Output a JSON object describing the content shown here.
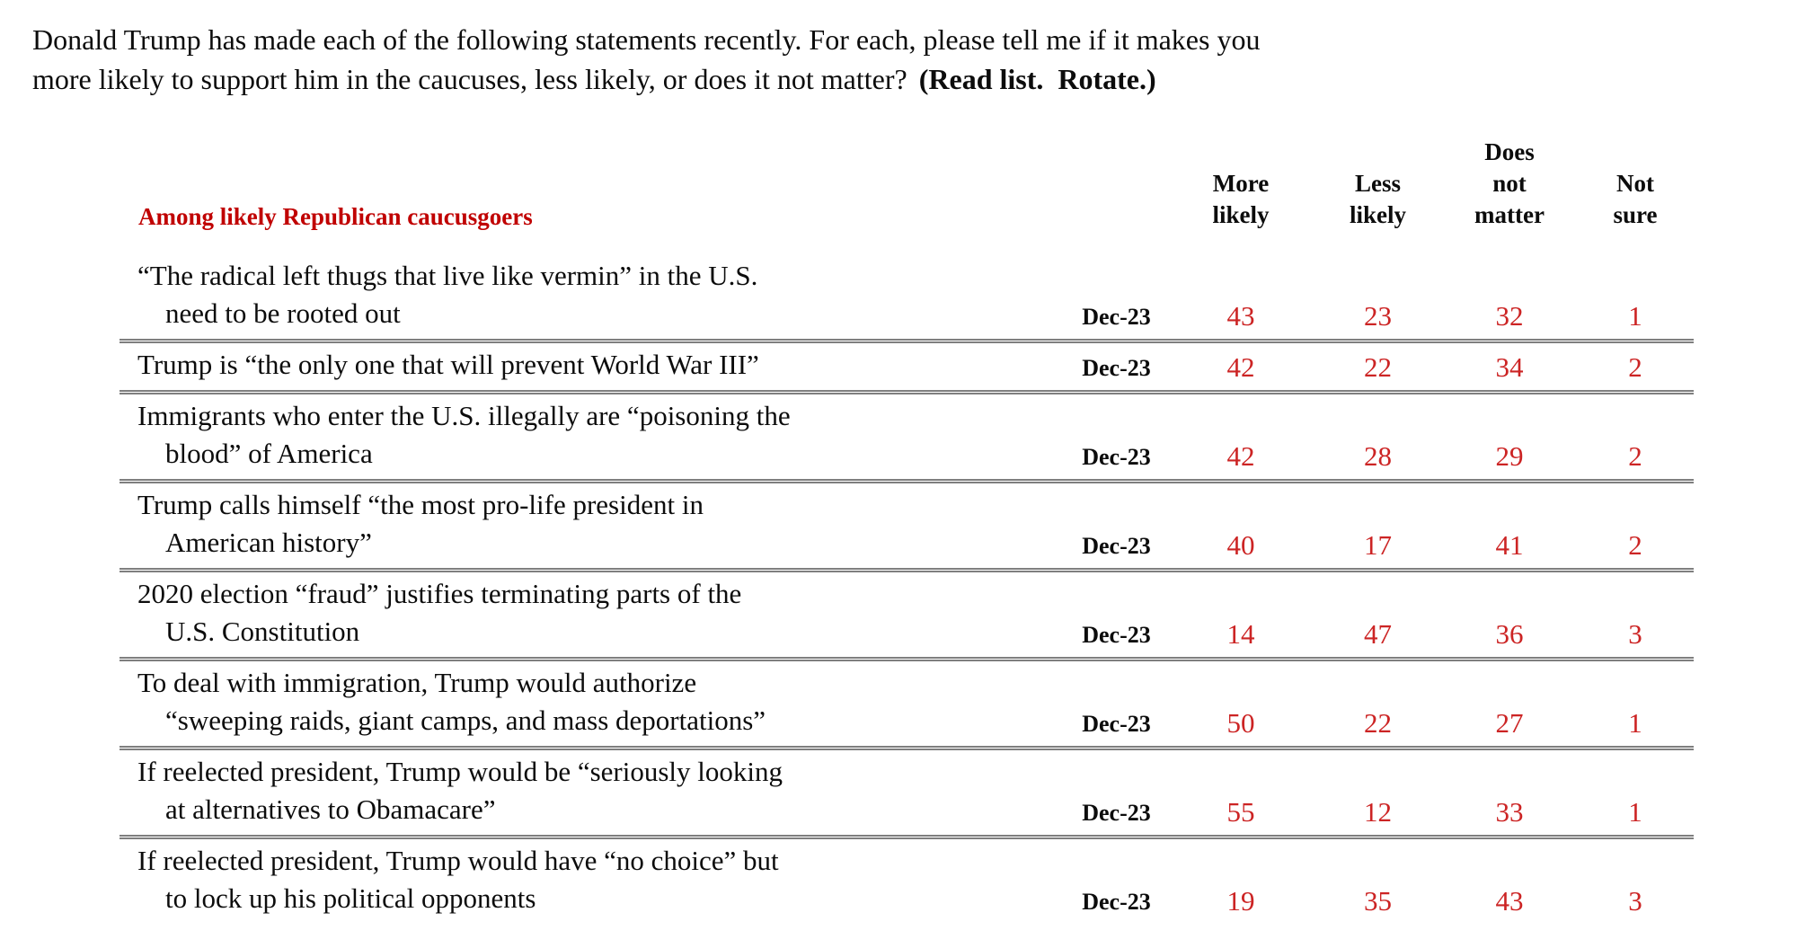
{
  "question": {
    "line1": "Donald Trump has made each of the following statements recently. For each, please tell me if it makes you",
    "line2": "more likely to support him in the caucuses, less likely, or does it not matter?",
    "directive": "(Read list.  Rotate.)"
  },
  "table": {
    "subtitle": "Among likely Republican caucusgoers",
    "columns": [
      "More\nlikely",
      "Less\nlikely",
      "Does\nnot\nmatter",
      "Not\nsure"
    ],
    "rows": [
      {
        "lines": [
          "“The radical left thugs that live like vermin” in the U.S.",
          "need to be rooted out"
        ],
        "date": "Dec-23",
        "values": [
          "43",
          "23",
          "32",
          "1"
        ]
      },
      {
        "lines": [
          "Trump is “the only one that will prevent World War III”"
        ],
        "date": "Dec-23",
        "values": [
          "42",
          "22",
          "34",
          "2"
        ]
      },
      {
        "lines": [
          "Immigrants who enter the U.S. illegally are “poisoning the",
          "blood” of America"
        ],
        "date": "Dec-23",
        "values": [
          "42",
          "28",
          "29",
          "2"
        ]
      },
      {
        "lines": [
          "Trump calls himself “the most pro-life president in",
          "American history”"
        ],
        "date": "Dec-23",
        "values": [
          "40",
          "17",
          "41",
          "2"
        ]
      },
      {
        "lines": [
          "2020 election “fraud” justifies terminating parts of the",
          "U.S. Constitution"
        ],
        "date": "Dec-23",
        "values": [
          "14",
          "47",
          "36",
          "3"
        ]
      },
      {
        "lines": [
          "To deal with immigration, Trump would authorize",
          "“sweeping raids, giant camps, and mass deportations”"
        ],
        "date": "Dec-23",
        "values": [
          "50",
          "22",
          "27",
          "1"
        ]
      },
      {
        "lines": [
          "If reelected president, Trump would be “seriously looking",
          "at alternatives to Obamacare”"
        ],
        "date": "Dec-23",
        "values": [
          "55",
          "12",
          "33",
          "1"
        ]
      },
      {
        "lines": [
          "If reelected president, Trump would have “no choice” but",
          "to lock up his political opponents"
        ],
        "date": "Dec-23",
        "values": [
          "19",
          "35",
          "43",
          "3"
        ]
      }
    ]
  },
  "colors": {
    "accent_red": "#c00000",
    "value_red": "#cc2424",
    "border_gray": "#7f7f7f"
  }
}
